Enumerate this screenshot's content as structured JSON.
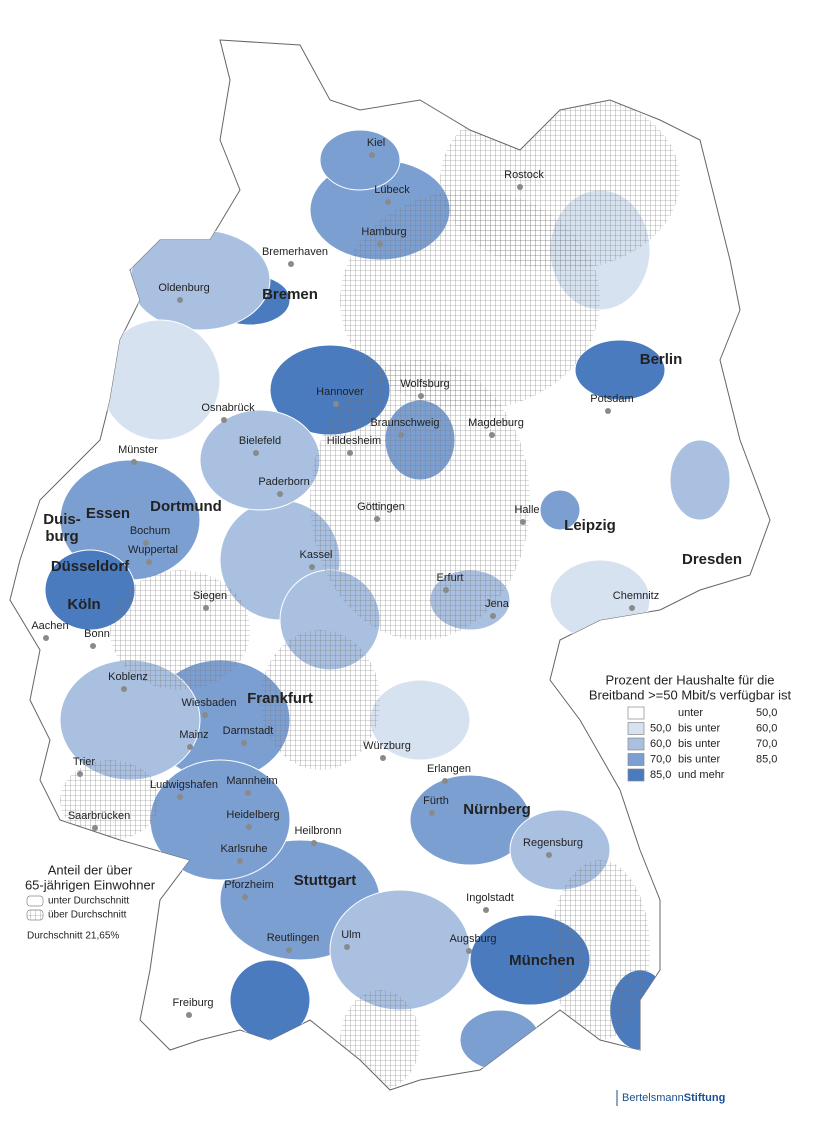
{
  "cities": [
    "Kiel",
    "Rostock",
    "Lübeck",
    "Hamburg",
    "Bremerhaven",
    "Oldenburg",
    "Hannover",
    "Wolfsburg",
    "Osnabrück",
    "Potsdam",
    "Braunschweig",
    "Magdeburg",
    "Bielefeld",
    "Hildesheim",
    "Münster",
    "Paderborn",
    "Göttingen",
    "Halle",
    "Bochum",
    "Wuppertal",
    "Kassel",
    "Erfurt",
    "Siegen",
    "Chemnitz",
    "Jena",
    "Aachen",
    "Bonn",
    "Koblenz",
    "Wiesbaden",
    "Mainz",
    "Darmstadt",
    "Würzburg",
    "Trier",
    "Erlangen",
    "Mannheim",
    "Ludwigshafen",
    "Fürth",
    "Heidelberg",
    "Saarbrücken",
    "Heilbronn",
    "Regensburg",
    "Karlsruhe",
    "Pforzheim",
    "Ingolstadt",
    "Ulm",
    "Reutlingen",
    "Augsburg",
    "Freiburg"
  ],
  "major_cities": [
    "Bremen",
    "Berlin",
    "Dortmund",
    "Duis-",
    "burg",
    "Essen",
    "Leipzig",
    "Dresden",
    "Düsseldorf",
    "Köln",
    "Frankfurt",
    "Nürnberg",
    "Stuttgart",
    "München"
  ],
  "broadband_legend": {
    "title": [
      "Prozent der Haushalte für die",
      "Breitband >=50 Mbit/s verfügbar ist"
    ],
    "colors": [
      "#ffffff",
      "#d6e2f0",
      "#a9c0e0",
      "#7c9fd2",
      "#4a7bbf"
    ],
    "rows": [
      [
        "unter",
        "50,0"
      ],
      [
        "50,0",
        "bis unter",
        "60,0"
      ],
      [
        "60,0",
        "bis unter",
        "70,0"
      ],
      [
        "70,0",
        "bis unter",
        "85,0"
      ],
      [
        "85,0",
        "und mehr"
      ]
    ]
  },
  "age_legend": {
    "title": [
      "Anteil der über",
      "65-jährigen Einwohner"
    ],
    "items": [
      "unter Durchschnitt",
      "über Durchschnitt"
    ],
    "note": "Durchschnitt 21,65%"
  },
  "logo": {
    "part1": "Bertelsmann",
    "part2": "Stiftung"
  }
}
